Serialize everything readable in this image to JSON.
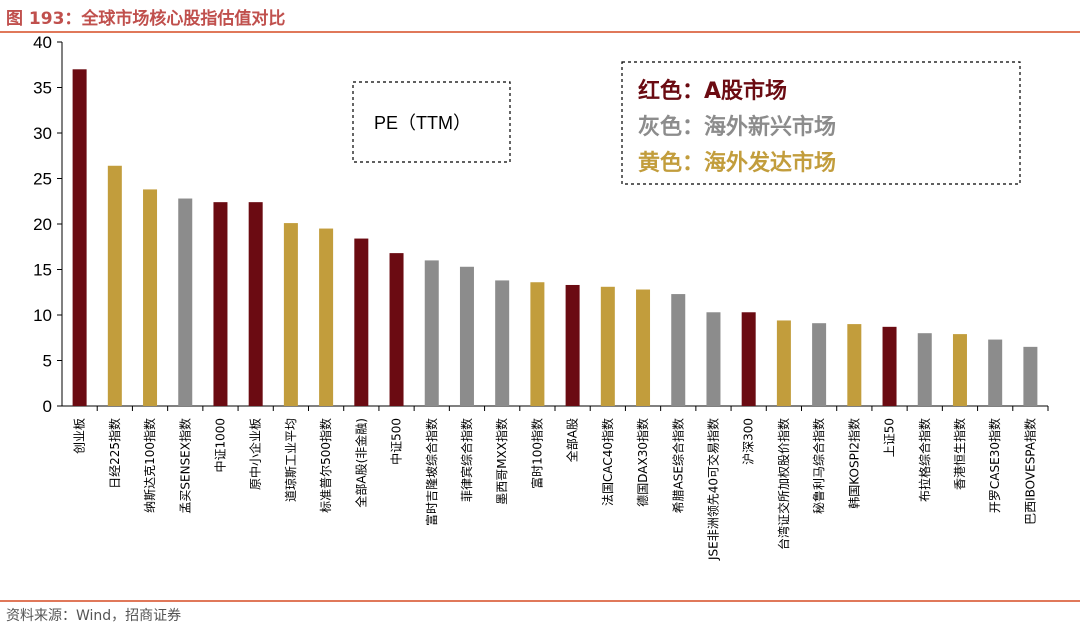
{
  "header": {
    "title": "图 193：全球市场核心股指估值对比"
  },
  "footer": {
    "source": "资料来源：Wind，招商证券"
  },
  "colors": {
    "red": "#6b0b12",
    "gray": "#8c8c8c",
    "gold": "#c29d3c"
  },
  "chart_data": {
    "type": "bar",
    "ylim": [
      0,
      40
    ],
    "yticks": [
      "0",
      "5",
      "10",
      "15",
      "20",
      "25",
      "30",
      "35",
      "40"
    ],
    "annotation": "PE（TTM）",
    "legend": [
      {
        "label": "红色：A股市场",
        "color": "red"
      },
      {
        "label": "灰色：海外新兴市场",
        "color": "gray"
      },
      {
        "label": "黄色：海外发达市场",
        "color": "gold"
      }
    ],
    "categories": [
      "创业板",
      "日经225指数",
      "纳斯达克100指数",
      "孟买SENSEX指数",
      "中证1000",
      "原中小企业板",
      "道琼斯工业平均",
      "标准普尔500指数",
      "全部A股(非金融)",
      "中证500",
      "富时吉隆坡综合指数",
      "菲律宾综合指数",
      "墨西哥MXX指数",
      "富时100指数",
      "全部A股",
      "法国CAC40指数",
      "德国DAX30指数",
      "希腊ASE综合指数",
      "JSE非洲领先40可交易指数",
      "沪深300",
      "台湾证交所加权股价指数",
      "秘鲁利马综合指数",
      "韩国KOSPI2指数",
      "上证50",
      "布拉格综合指数",
      "香港恒生指数",
      "开罗CASE30指数",
      "巴西IBOVESPA指数"
    ],
    "values": [
      37.0,
      26.4,
      23.8,
      22.8,
      22.4,
      22.4,
      20.1,
      19.5,
      18.4,
      16.8,
      16.0,
      15.3,
      13.8,
      13.6,
      13.3,
      13.1,
      12.8,
      12.3,
      10.3,
      10.3,
      9.4,
      9.1,
      9.0,
      8.7,
      8.0,
      7.9,
      7.3,
      6.5
    ],
    "groups": [
      "red",
      "gold",
      "gold",
      "gray",
      "red",
      "red",
      "gold",
      "gold",
      "red",
      "red",
      "gray",
      "gray",
      "gray",
      "gold",
      "red",
      "gold",
      "gold",
      "gray",
      "gray",
      "red",
      "gold",
      "gray",
      "gold",
      "red",
      "gray",
      "gold",
      "gray",
      "gray"
    ]
  }
}
